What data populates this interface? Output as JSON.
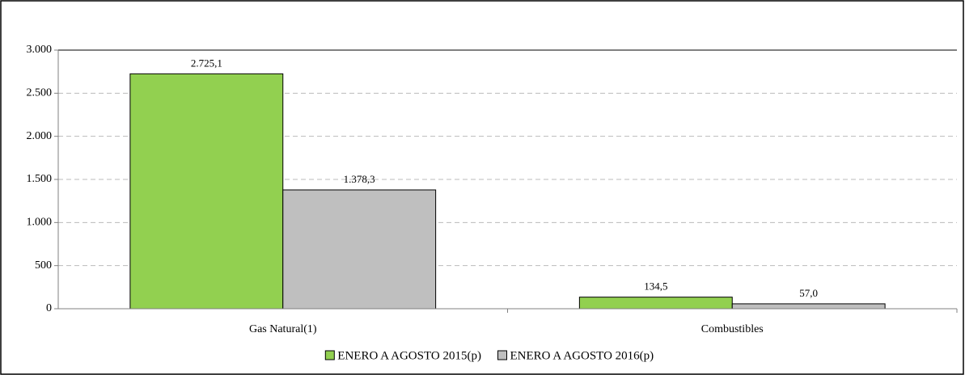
{
  "chart_data": {
    "type": "bar",
    "categories": [
      "Gas Natural(1)",
      "Combustibles"
    ],
    "series": [
      {
        "name": "ENERO A AGOSTO 2015(p)",
        "color": "#92d050",
        "values": [
          2725.1,
          134.5
        ],
        "value_labels": [
          "2.725,1",
          "134,5"
        ]
      },
      {
        "name": "ENERO A AGOSTO 2016(p)",
        "color": "#bfbfbf",
        "values": [
          1378.3,
          57.0
        ],
        "value_labels": [
          "1.378,3",
          "57,0"
        ]
      }
    ],
    "ylim": [
      0,
      3000
    ],
    "yticks": [
      0,
      500,
      {
        "value": 1000,
        "label": "1.000"
      },
      {
        "value": 1500,
        "label": "1.500"
      },
      {
        "value": 2000,
        "label": "2.000"
      },
      {
        "value": 2500,
        "label": "2.500"
      },
      {
        "value": 3000,
        "label": "3.000"
      }
    ],
    "grid": true
  }
}
